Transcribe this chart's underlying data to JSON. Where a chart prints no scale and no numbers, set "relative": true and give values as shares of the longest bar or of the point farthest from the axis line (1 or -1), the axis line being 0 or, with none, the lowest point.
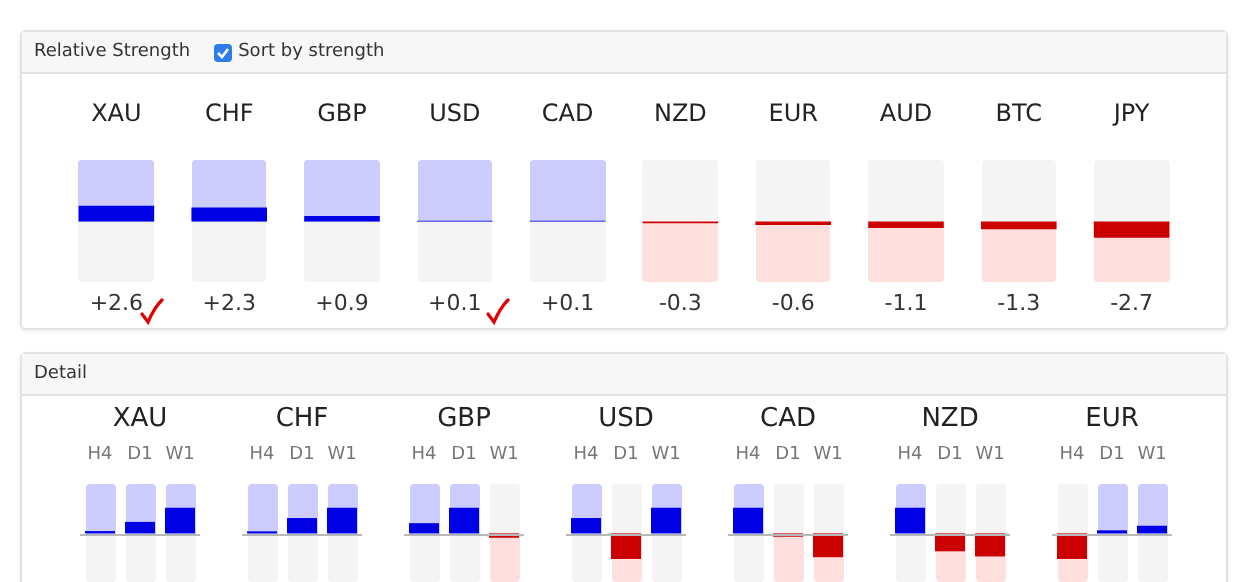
{
  "chart_data": [
    {
      "type": "bar",
      "title": "Relative Strength",
      "annotations": [
        "Sort by strength"
      ],
      "categories": [
        "XAU",
        "CHF",
        "GBP",
        "USD",
        "CAD",
        "NZD",
        "EUR",
        "AUD",
        "BTC",
        "JPY"
      ],
      "values": [
        2.6,
        2.3,
        0.9,
        0.1,
        0.1,
        -0.3,
        -0.6,
        -1.1,
        -1.3,
        -2.7
      ],
      "value_labels": [
        "+2.6",
        "+2.3",
        "+0.9",
        "+0.1",
        "+0.1",
        "-0.3",
        "-0.6",
        "-1.1",
        "-1.3",
        "-2.7"
      ],
      "colors": [
        "#0000e6",
        "#0000e6",
        "#0000e6",
        "#0000e6",
        "#0000e6",
        "#cc0000",
        "#cc0000",
        "#cc0000",
        "#cc0000",
        "#cc0000"
      ]
    },
    {
      "type": "bar",
      "title": "XAU",
      "annotations": [
        "Detail"
      ],
      "relative": true,
      "categories": [
        "H4",
        "D1",
        "W1"
      ],
      "values": [
        0.09,
        0.45,
        1
      ],
      "colors": [
        "#0000e6",
        "#0000e6",
        "#0000e6"
      ]
    },
    {
      "type": "bar",
      "title": "CHF",
      "relative": true,
      "categories": [
        "H4",
        "D1",
        "W1"
      ],
      "values": [
        0.08,
        0.6,
        1
      ],
      "colors": [
        "#0000e6",
        "#0000e6",
        "#0000e6"
      ]
    },
    {
      "type": "bar",
      "title": "GBP",
      "relative": true,
      "categories": [
        "H4",
        "D1",
        "W1"
      ],
      "values": [
        0.4,
        1,
        -0.17
      ],
      "colors": [
        "#0000e6",
        "#0000e6",
        "#cc0000"
      ]
    },
    {
      "type": "bar",
      "title": "USD",
      "relative": true,
      "categories": [
        "H4",
        "D1",
        "W1"
      ],
      "values": [
        0.6,
        -1,
        1
      ],
      "colors": [
        "#0000e6",
        "#cc0000",
        "#0000e6"
      ]
    },
    {
      "type": "bar",
      "title": "CAD",
      "relative": true,
      "categories": [
        "H4",
        "D1",
        "W1"
      ],
      "values": [
        1,
        -0.13,
        -0.93
      ],
      "colors": [
        "#0000e6",
        "#cc0000",
        "#cc0000"
      ]
    },
    {
      "type": "bar",
      "title": "NZD",
      "relative": true,
      "categories": [
        "H4",
        "D1",
        "W1"
      ],
      "values": [
        1,
        -0.7,
        -0.9
      ],
      "colors": [
        "#0000e6",
        "#cc0000",
        "#cc0000"
      ]
    },
    {
      "type": "bar",
      "title": "EUR",
      "relative": true,
      "categories": [
        "H4",
        "D1",
        "W1"
      ],
      "values": [
        -1,
        0.12,
        0.3
      ],
      "colors": [
        "#cc0000",
        "#0000e6",
        "#0000e6"
      ]
    }
  ]
}
